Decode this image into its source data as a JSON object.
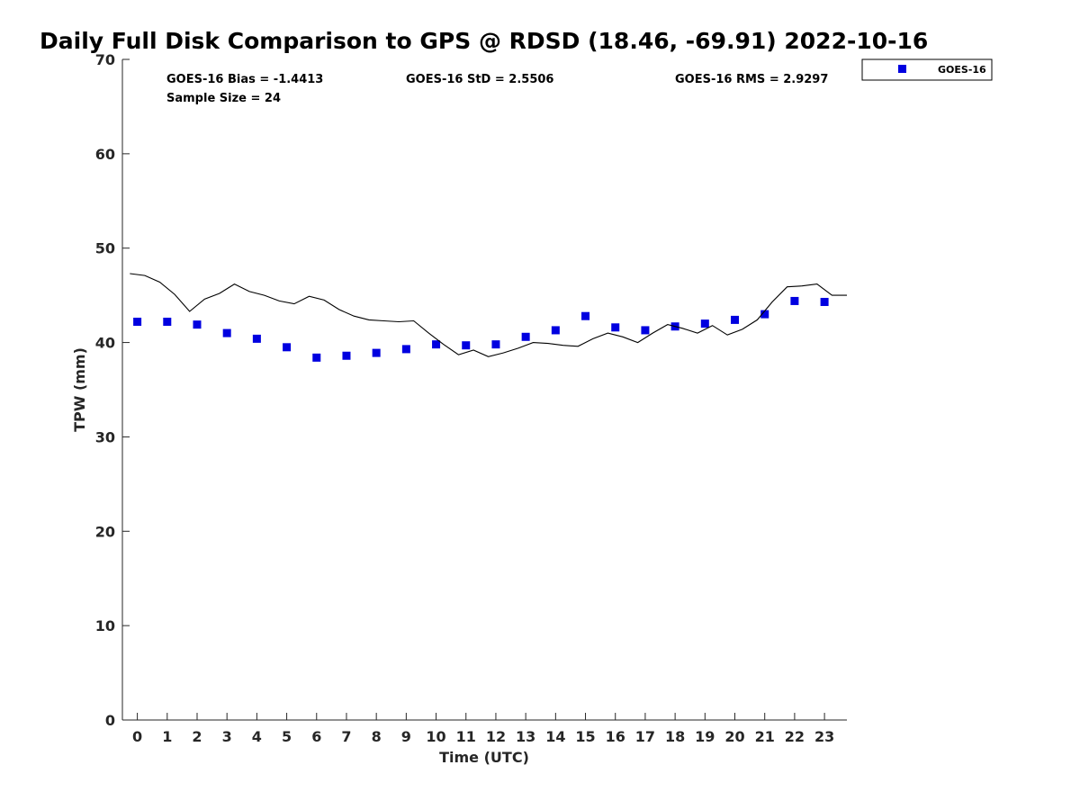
{
  "chart_data": {
    "type": "scatter",
    "title": "Daily Full Disk Comparison to GPS @ RDSD (18.46, -69.91) 2022-10-16",
    "xlabel": "Time (UTC)",
    "ylabel": "TPW (mm)",
    "xlim": [
      -0.5,
      23.75
    ],
    "ylim": [
      0,
      70
    ],
    "x_ticks": [
      0,
      1,
      2,
      3,
      4,
      5,
      6,
      7,
      8,
      9,
      10,
      11,
      12,
      13,
      14,
      15,
      16,
      17,
      18,
      19,
      20,
      21,
      22,
      23
    ],
    "y_ticks": [
      0,
      10,
      20,
      30,
      40,
      50,
      60,
      70
    ],
    "grid": false,
    "legend_position": "top-right outside",
    "stats": {
      "bias": "GOES-16 Bias = -1.4413",
      "std": "GOES-16 StD = 2.5506",
      "rms": "GOES-16 RMS = 2.9297",
      "sample": "Sample Size = 24"
    },
    "series": [
      {
        "name": "GOES-16",
        "kind": "markers",
        "marker": "square",
        "color": "#0000e0",
        "x": [
          0,
          1,
          2,
          3,
          4,
          5,
          6,
          7,
          8,
          9,
          10,
          11,
          12,
          13,
          14,
          15,
          16,
          17,
          18,
          19,
          20,
          21,
          22,
          23
        ],
        "y": [
          42.2,
          42.2,
          41.9,
          41.0,
          40.4,
          39.5,
          38.4,
          38.6,
          38.9,
          39.3,
          39.8,
          39.7,
          39.8,
          40.6,
          41.3,
          42.8,
          41.6,
          41.3,
          41.7,
          42.0,
          42.4,
          43.0,
          44.4,
          44.3
        ]
      },
      {
        "kind": "line",
        "color": "#000000",
        "x": [
          -0.25,
          0.25,
          0.75,
          1.25,
          1.75,
          2.25,
          2.75,
          3.25,
          3.75,
          4.25,
          4.75,
          5.25,
          5.75,
          6.25,
          6.75,
          7.25,
          7.75,
          8.25,
          8.75,
          9.25,
          9.75,
          10.25,
          10.75,
          11.25,
          11.75,
          12.25,
          12.75,
          13.25,
          13.75,
          14.25,
          14.75,
          15.25,
          15.75,
          16.25,
          16.75,
          17.25,
          17.75,
          18.25,
          18.75,
          19.25,
          19.75,
          20.25,
          20.75,
          21.25,
          21.75,
          22.25,
          22.75,
          23.25,
          23.75
        ],
        "y": [
          47.3,
          47.1,
          46.4,
          45.1,
          43.3,
          44.6,
          45.2,
          46.2,
          45.4,
          45.0,
          44.4,
          44.1,
          44.9,
          44.5,
          43.5,
          42.8,
          42.4,
          42.3,
          42.2,
          42.3,
          41.0,
          39.8,
          38.7,
          39.2,
          38.5,
          38.9,
          39.4,
          40.0,
          39.9,
          39.7,
          39.6,
          40.4,
          41.0,
          40.6,
          40.0,
          41.0,
          41.9,
          41.5,
          41.0,
          41.8,
          40.8,
          41.4,
          42.4,
          44.3,
          45.9,
          46.0,
          46.2,
          45.0,
          45.0
        ]
      }
    ]
  }
}
